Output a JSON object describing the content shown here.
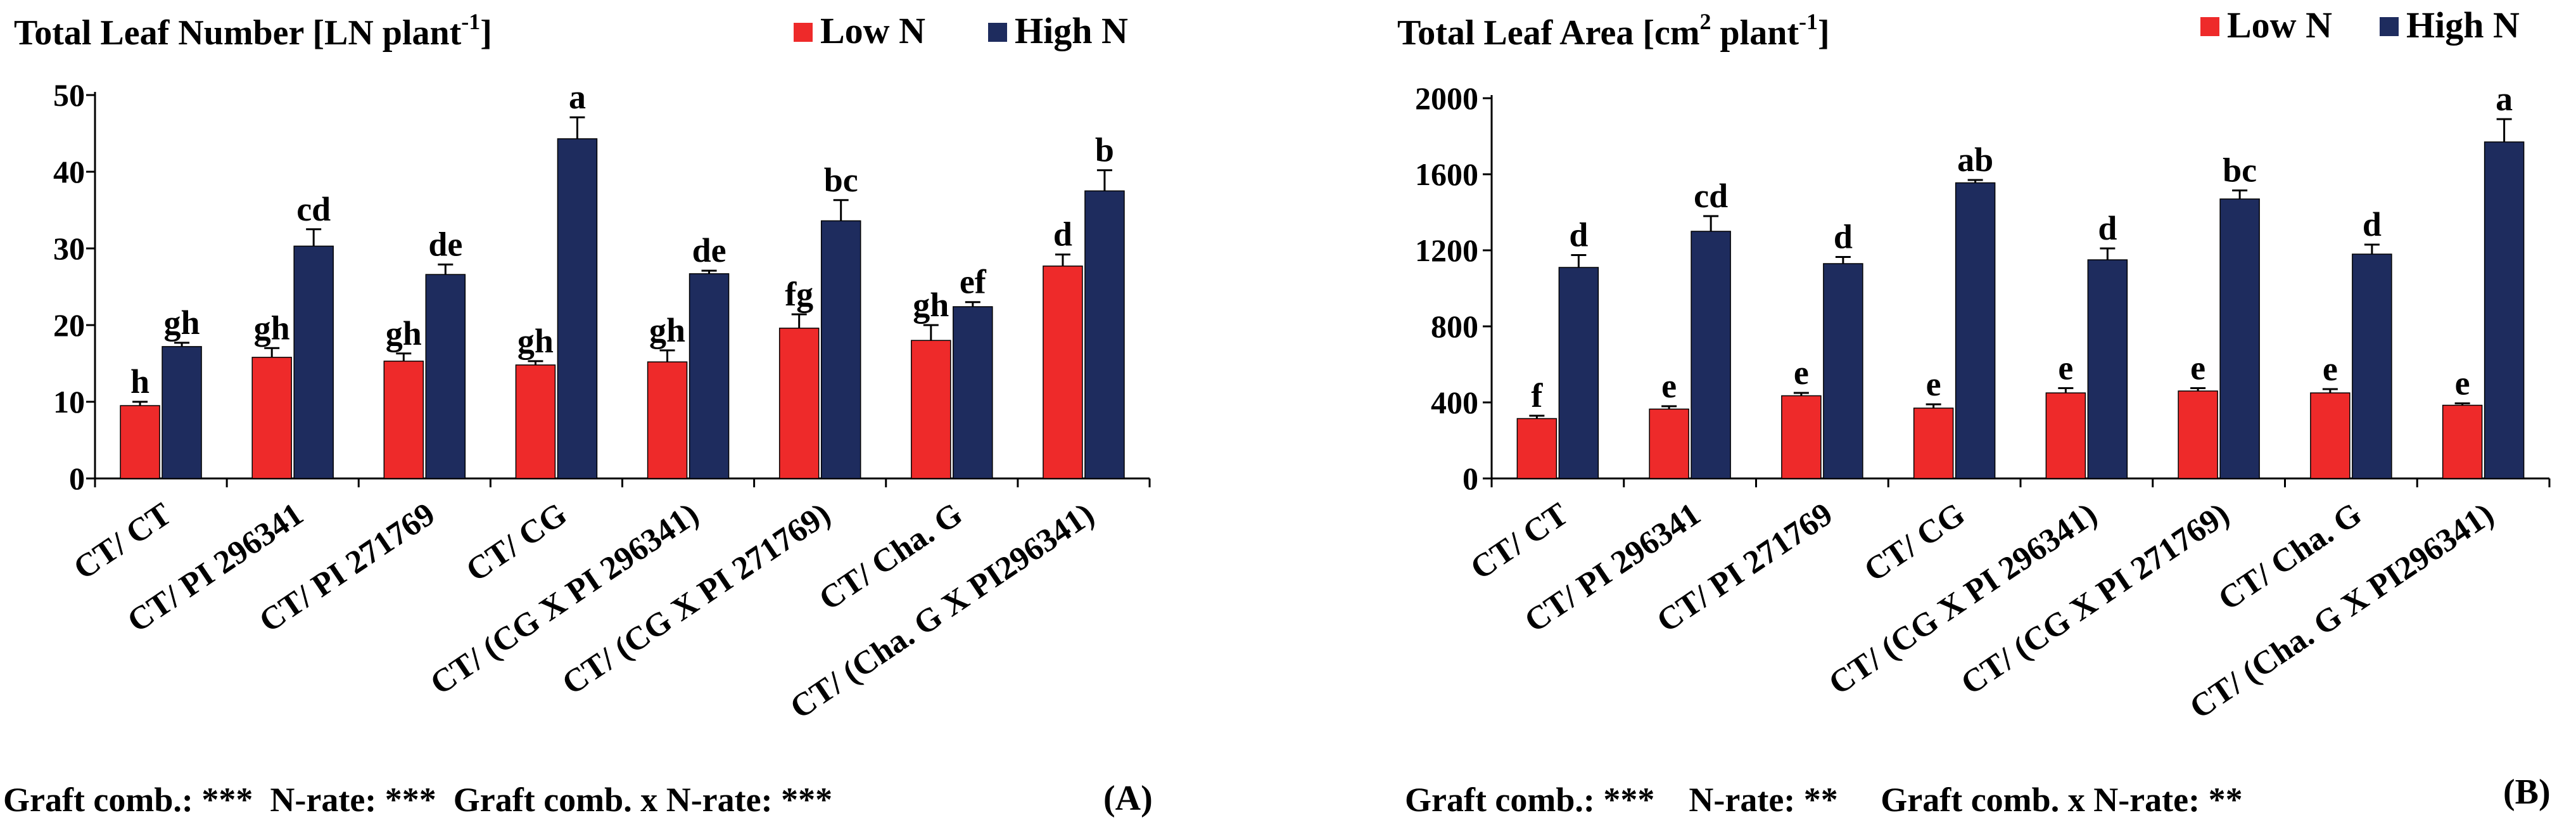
{
  "colors": {
    "low_n": "#ee2a2a",
    "high_n": "#1e2c5e"
  },
  "chart_data": [
    {
      "type": "bar",
      "panel_label": "(A)",
      "title_main": "Total Leaf Number [LN plant",
      "title_sup": "-1",
      "title_close": "]",
      "ylim": [
        0,
        50
      ],
      "yticks": [
        0,
        10,
        20,
        30,
        40,
        50
      ],
      "ytick_labels": [
        "0",
        "10",
        "20",
        "30",
        "40",
        "50"
      ],
      "categories": [
        "CT/ CT",
        "CT/ PI 296341",
        "CT/ PI 271769",
        "CT/ CG",
        "CT/ (CG X PI 296341)",
        "CT/ (CG X PI 271769)",
        "CT/ Cha. G",
        "CT/ (Cha. G X PI296341)"
      ],
      "series": [
        {
          "name": "Low N",
          "values": [
            9.5,
            15.8,
            15.3,
            14.8,
            15.2,
            19.6,
            18.0,
            27.7
          ],
          "errors": [
            0.5,
            1.2,
            1.0,
            0.5,
            1.5,
            1.8,
            2.0,
            1.5
          ],
          "letters": [
            "h",
            "gh",
            "gh",
            "gh",
            "gh",
            "fg",
            "gh",
            "d"
          ]
        },
        {
          "name": "High N",
          "values": [
            17.2,
            30.3,
            26.6,
            44.3,
            26.7,
            33.6,
            22.4,
            37.5
          ],
          "errors": [
            0.5,
            2.2,
            1.3,
            2.8,
            0.4,
            2.7,
            0.6,
            2.7
          ],
          "letters": [
            "gh",
            "cd",
            "de",
            "a",
            "de",
            "bc",
            "ef",
            "b"
          ]
        }
      ],
      "footer": "Graft comb.: ***  N-rate: ***  Graft comb. x N-rate: ***"
    },
    {
      "type": "bar",
      "panel_label": "(B)",
      "title_main": "Total Leaf Area  [cm",
      "title_sup": "2",
      "title_mid": " plant",
      "title_sup2": "-1",
      "title_close": "]",
      "ylim": [
        0,
        2000
      ],
      "yticks": [
        0,
        400,
        800,
        1200,
        1600,
        2000
      ],
      "ytick_labels": [
        "0",
        "400",
        "800",
        "1200",
        "1600",
        "2000"
      ],
      "categories": [
        "CT/ CT",
        "CT/ PI 296341",
        "CT/ PI 271769",
        "CT/ CG",
        "CT/ (CG X PI 296341)",
        "CT/ (CG X PI 271769)",
        "CT/ Cha. G",
        "CT/ (Cha. G X PI296341)"
      ],
      "series": [
        {
          "name": "Low N",
          "values": [
            315,
            365,
            435,
            370,
            450,
            460,
            450,
            385
          ],
          "errors": [
            15,
            15,
            15,
            20,
            25,
            15,
            20,
            10
          ],
          "letters": [
            "f",
            "e",
            "e",
            "e",
            "e",
            "e",
            "e",
            "e"
          ]
        },
        {
          "name": "High N",
          "values": [
            1110,
            1300,
            1130,
            1555,
            1150,
            1470,
            1180,
            1770
          ],
          "errors": [
            65,
            80,
            35,
            15,
            60,
            45,
            50,
            120
          ],
          "letters": [
            "d",
            "cd",
            "d",
            "ab",
            "d",
            "bc",
            "d",
            "a"
          ]
        }
      ],
      "footer": "Graft comb.: ***    N-rate: **     Graft comb. x N-rate: **"
    }
  ]
}
